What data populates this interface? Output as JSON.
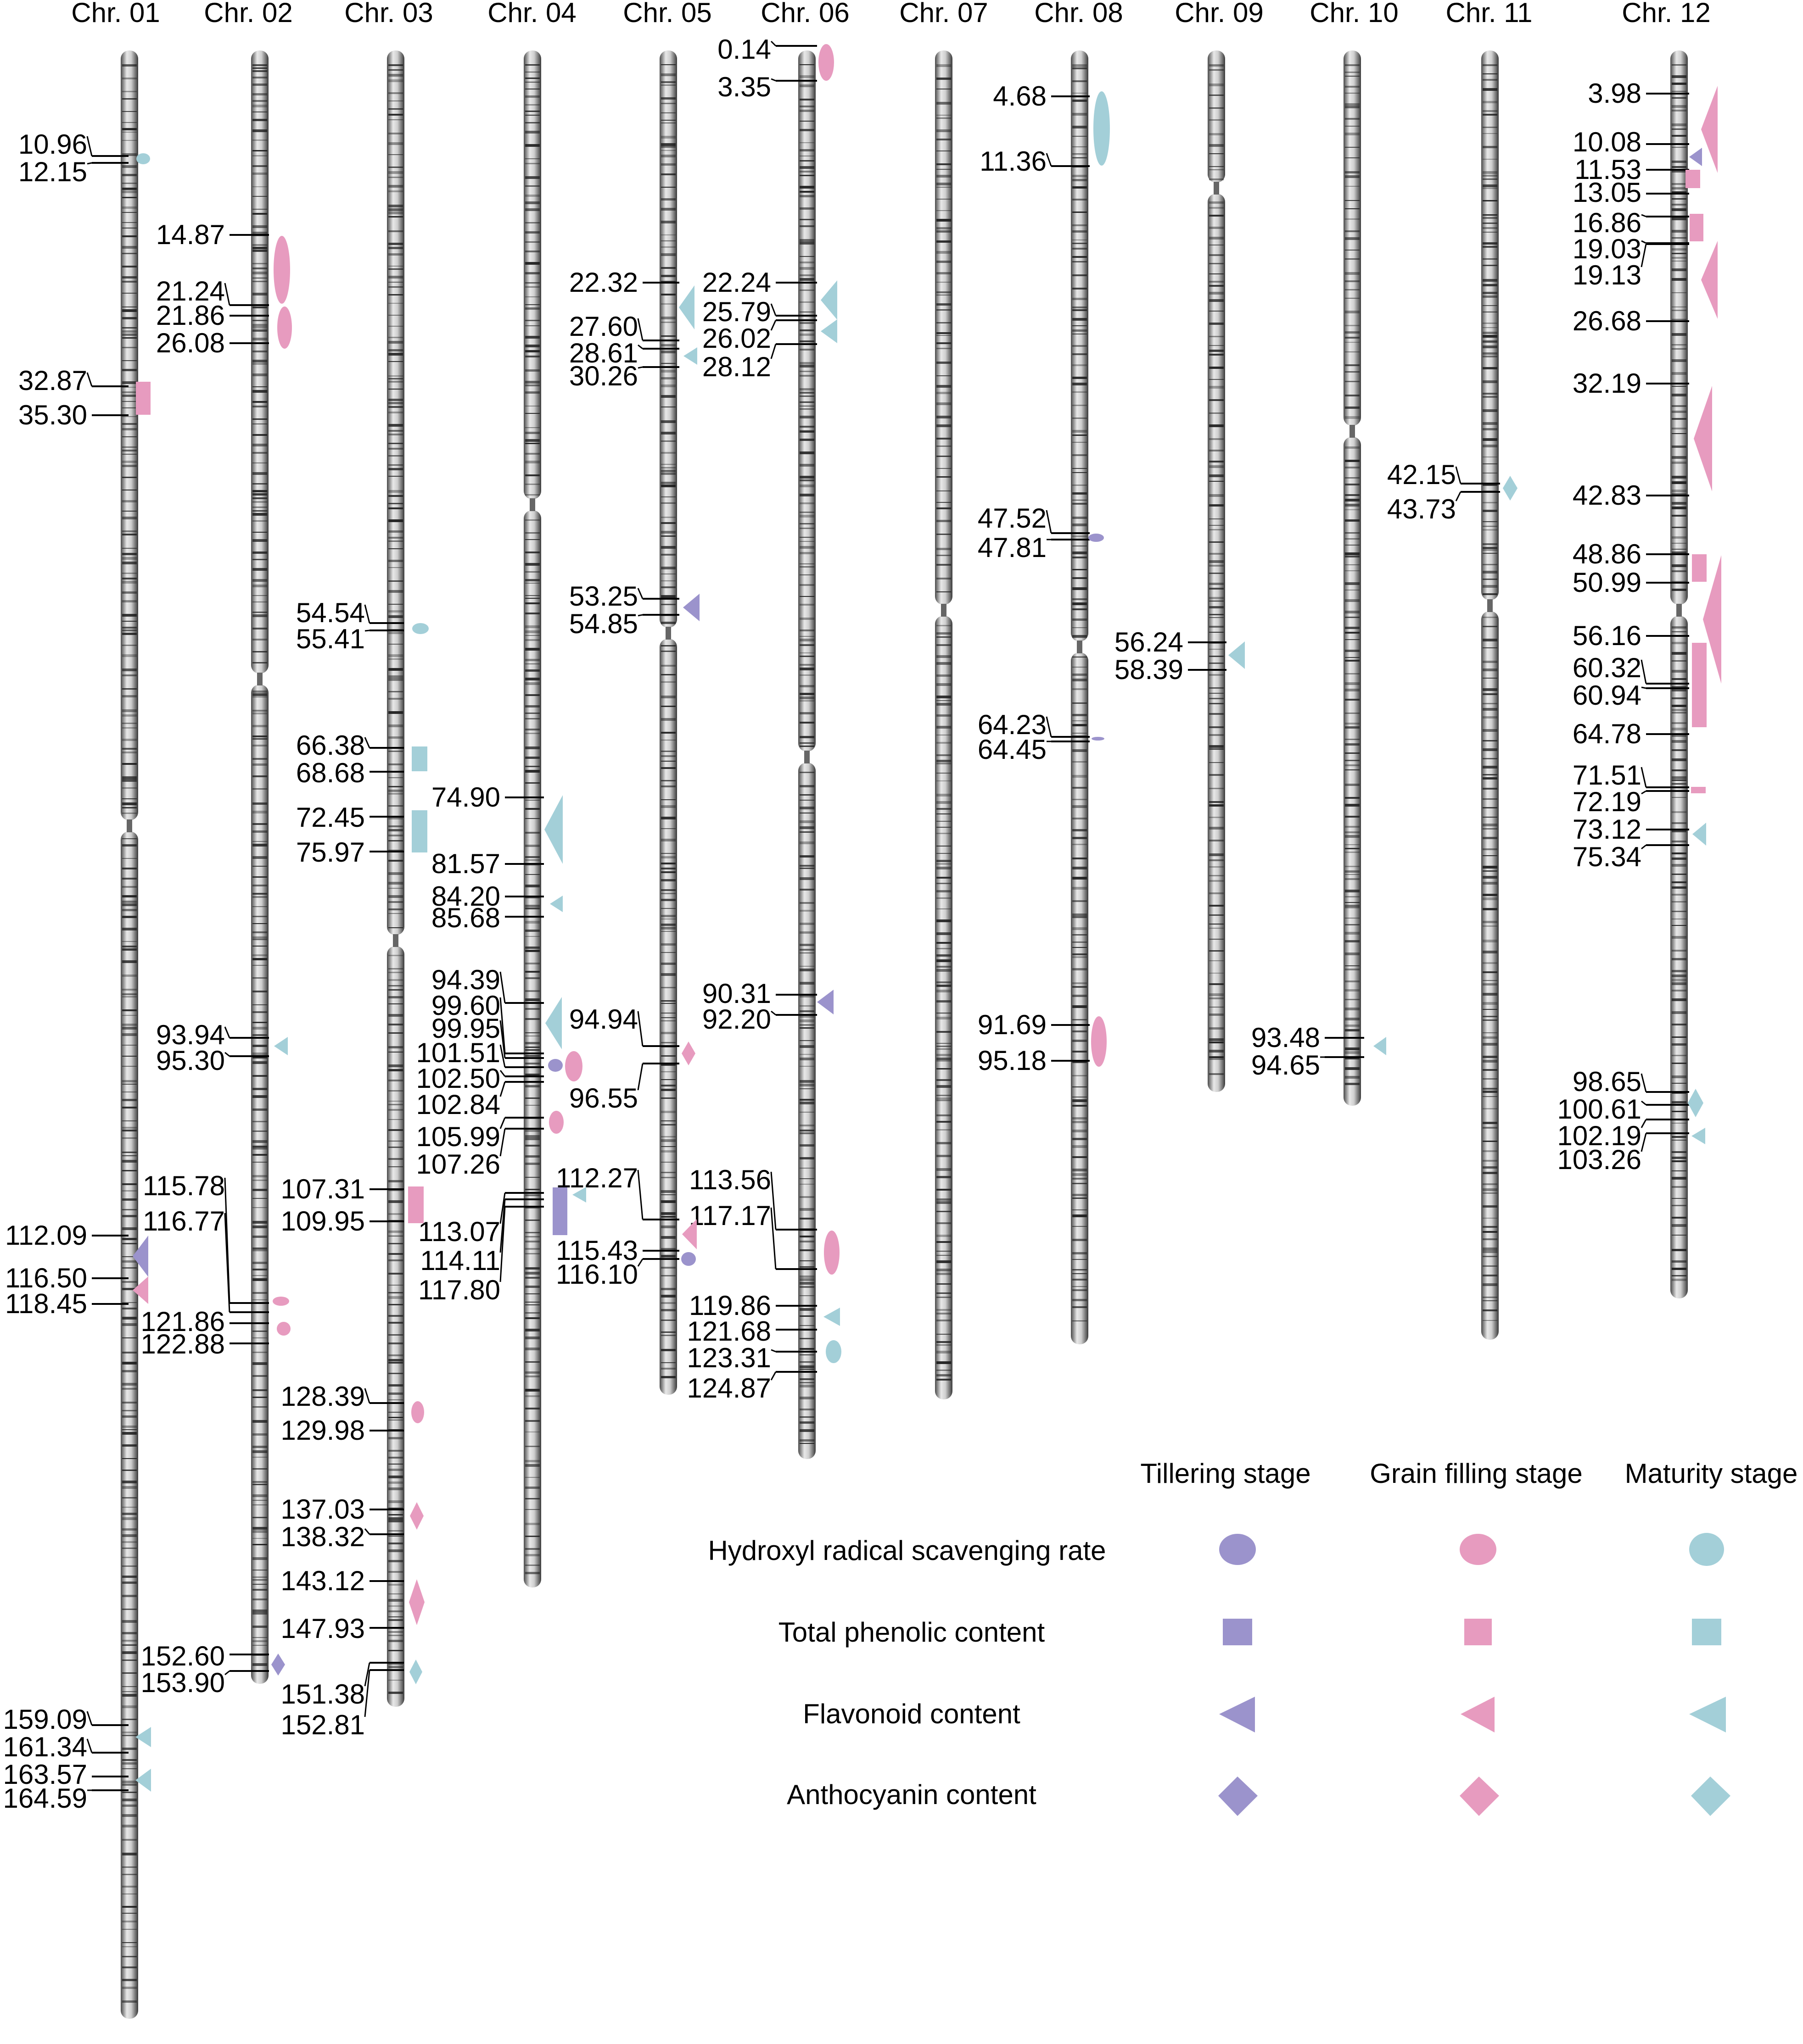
{
  "colors": {
    "tillering": "#9b93cc",
    "grain_filling": "#e79bbf",
    "maturity": "#a3cfd8"
  },
  "chromosomes": [
    {
      "name": "Chr. 01",
      "length": 168
    },
    {
      "name": "Chr. 02",
      "length": 157
    },
    {
      "name": "Chr. 03",
      "length": 156
    },
    {
      "name": "Chr. 04",
      "length": 129
    },
    {
      "name": "Chr. 05",
      "length": 125
    },
    {
      "name": "Chr. 06",
      "length": 128
    },
    {
      "name": "Chr. 07",
      "length": 125
    },
    {
      "name": "Chr. 08",
      "length": 113
    },
    {
      "name": "Chr. 09",
      "length": 93
    },
    {
      "name": "Chr. 10",
      "length": 94
    },
    {
      "name": "Chr. 11",
      "length": 110
    },
    {
      "name": "Chr. 12",
      "length": 107
    }
  ],
  "positions": [
    {
      "chr": 0,
      "labels": [
        "10.96",
        "12.15",
        "32.87",
        "35.30",
        "112.09",
        "116.50",
        "118.45",
        "159.09",
        "161.34",
        "163.57",
        "164.59"
      ]
    },
    {
      "chr": 1,
      "labels": [
        "14.87",
        "21.24",
        "21.86",
        "26.08",
        "93.94",
        "95.30",
        "115.78",
        "116.77",
        "121.86",
        "122.88",
        "152.60",
        "153.90"
      ]
    },
    {
      "chr": 2,
      "labels": [
        "54.54",
        "55.41",
        "66.38",
        "68.68",
        "72.45",
        "75.97",
        "107.31",
        "109.95",
        "128.39",
        "129.98",
        "137.03",
        "138.32",
        "143.12",
        "147.93",
        "151.38",
        "152.81"
      ]
    },
    {
      "chr": 3,
      "labels": [
        "74.90",
        "81.57",
        "84.20",
        "85.68",
        "94.39",
        "99.60",
        "99.95",
        "101.51",
        "102.50",
        "102.84",
        "105.99",
        "107.26",
        "113.07",
        "114.11",
        "117.80"
      ]
    },
    {
      "chr": 4,
      "labels": [
        "22.32",
        "27.60",
        "28.61",
        "30.26",
        "53.25",
        "54.85",
        "94.94",
        "96.55",
        "112.27",
        "115.43",
        "116.10"
      ]
    },
    {
      "chr": 5,
      "labels": [
        "0.14",
        "3.35",
        "22.24",
        "25.79",
        "26.02",
        "28.12",
        "90.31",
        "92.20",
        "113.56",
        "117.17",
        "119.86",
        "121.68",
        "123.31",
        "124.87"
      ]
    },
    {
      "chr": 7,
      "labels": [
        "4.68",
        "11.36",
        "47.52",
        "47.81",
        "64.23",
        "64.45",
        "91.69",
        "95.18"
      ]
    },
    {
      "chr": 8,
      "labels": [
        "56.24",
        "58.39"
      ]
    },
    {
      "chr": 9,
      "labels": [
        "93.48",
        "94.65"
      ]
    },
    {
      "chr": 10,
      "labels": [
        "42.15",
        "43.73"
      ]
    },
    {
      "chr": 11,
      "labels": [
        "3.98",
        "10.08",
        "11.53",
        "13.05",
        "16.86",
        "19.03",
        "19.13",
        "26.68",
        "32.19",
        "42.83",
        "48.86",
        "50.99",
        "56.16",
        "60.32",
        "60.94",
        "64.78",
        "71.51",
        "72.19",
        "73.12",
        "75.34",
        "98.65",
        "100.61",
        "102.19",
        "103.26"
      ]
    }
  ],
  "legend": {
    "stages": [
      "Tillering stage",
      "Grain filling stage",
      "Maturity stage"
    ],
    "traits": [
      {
        "label": "Hydroxyl radical scavenging rate",
        "shape": "circle"
      },
      {
        "label": "Total phenolic content",
        "shape": "square"
      },
      {
        "label": "Flavonoid content",
        "shape": "triangle"
      },
      {
        "label": "Anthocyanin content",
        "shape": "diamond"
      }
    ]
  }
}
